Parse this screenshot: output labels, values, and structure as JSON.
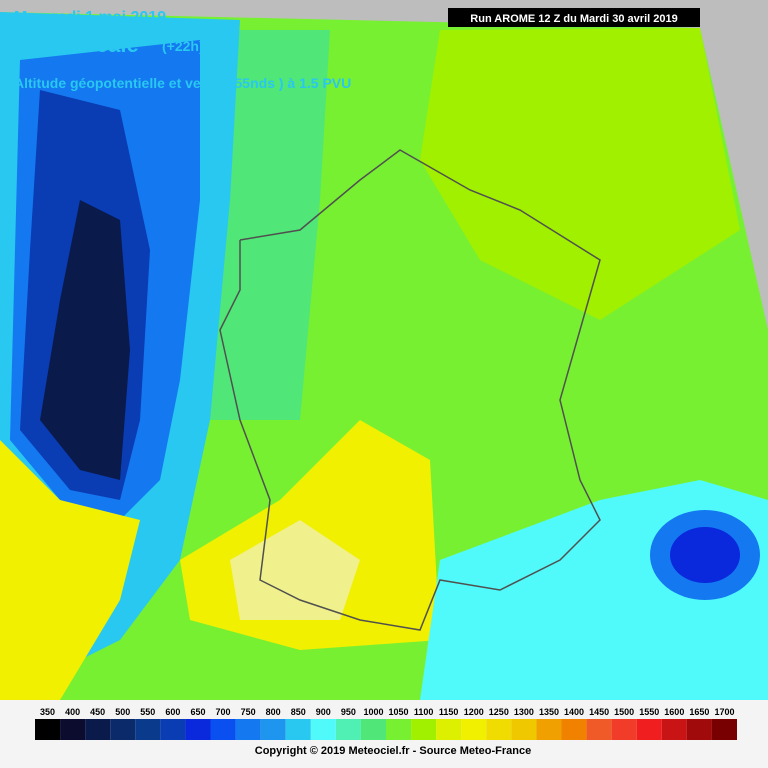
{
  "header": {
    "date": "Mercredi 1 mai 2019",
    "time": "12:00 locale",
    "lead": "(+22h)",
    "subtitle": "Altitude géopotentielle et vent (> 55nds ) à 1.5 PVU",
    "run": "Run AROME 12 Z du Mardi 30 avril 2019"
  },
  "legend": {
    "ticks": [
      350,
      400,
      450,
      500,
      550,
      600,
      650,
      700,
      750,
      800,
      850,
      900,
      950,
      1000,
      1050,
      1100,
      1150,
      1200,
      1250,
      1300,
      1350,
      1400,
      1450,
      1500,
      1550,
      1600,
      1650,
      1700
    ],
    "colors": [
      "#000000",
      "#0c0c2e",
      "#0a1a4a",
      "#0a2a6a",
      "#0a3a8c",
      "#0a3cb4",
      "#0a28dc",
      "#0a50f0",
      "#1478f0",
      "#1e96f0",
      "#28c8f0",
      "#50fafa",
      "#50f0b4",
      "#50e678",
      "#78f032",
      "#a0f000",
      "#dcf000",
      "#f0f000",
      "#f0dc00",
      "#f0c800",
      "#f0a000",
      "#f08200",
      "#f05a28",
      "#f03c28",
      "#f01e1e",
      "#c81414",
      "#a00a0a",
      "#780000"
    ]
  },
  "footer": {
    "copyright": "Copyright © 2019 Meteociel.fr - Source Meteo-France"
  }
}
